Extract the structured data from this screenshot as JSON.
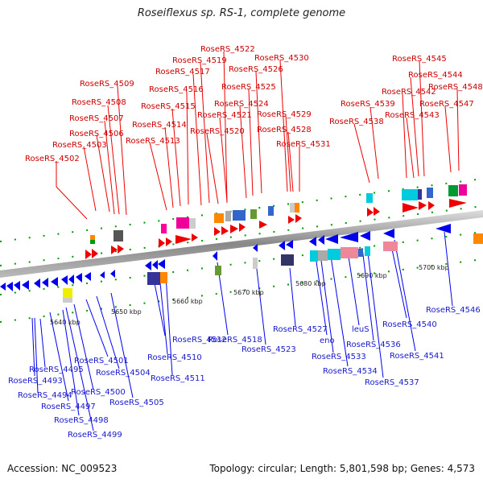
{
  "title": "Roseiflexus sp. RS-1, complete genome",
  "footer": {
    "accession": "Accession: NC_009523",
    "summary": "Topology: circular; Length: 5,801,598 bp; Genes: 4,573"
  },
  "ticks": [
    "5640 kbp",
    "5650 kbp",
    "5660 kbp",
    "5670 kbp",
    "5680 kbp",
    "5690 kbp",
    "5700 kbp"
  ],
  "top_labels": [
    "RoseRS_4502",
    "RoseRS_4503",
    "RoseRS_4506",
    "RoseRS_4507",
    "RoseRS_4508",
    "RoseRS_4509",
    "RoseRS_4513",
    "RoseRS_4514",
    "RoseRS_4515",
    "RoseRS_4516",
    "RoseRS_4517",
    "RoseRS_4519",
    "RoseRS_4522",
    "RoseRS_4520",
    "RoseRS_4521",
    "RoseRS_4524",
    "RoseRS_4525",
    "RoseRS_4526",
    "RoseRS_4530",
    "RoseRS_4529",
    "RoseRS_4528",
    "RoseRS_4531",
    "RoseRS_4538",
    "RoseRS_4539",
    "RoseRS_4542",
    "RoseRS_4543",
    "RoseRS_4544",
    "RoseRS_4545",
    "RoseRS_4547",
    "RoseRS_4548"
  ],
  "bottom_labels": [
    "RoseRS_4495",
    "RoseRS_4493",
    "RoseRS_4494",
    "RoseRS_4497",
    "RoseRS_4498",
    "RoseRS_4499",
    "RoseRS_4500",
    "RoseRS_4501",
    "RoseRS_4504",
    "RoseRS_4505",
    "RoseRS_4512",
    "RoseRS_4510",
    "RoseRS_4511",
    "RoseRS_4518",
    "RoseRS_4523",
    "RoseRS_4527",
    "eno",
    "RoseRS_4533",
    "RoseRS_4534",
    "leuS",
    "RoseRS_4536",
    "RoseRS_4537",
    "RoseRS_4540",
    "RoseRS_4541",
    "RoseRS_4546"
  ],
  "colors": {
    "forward": "#ee0000",
    "reverse": "#0000ee",
    "backbone": "#999999",
    "tick": "#009900"
  }
}
